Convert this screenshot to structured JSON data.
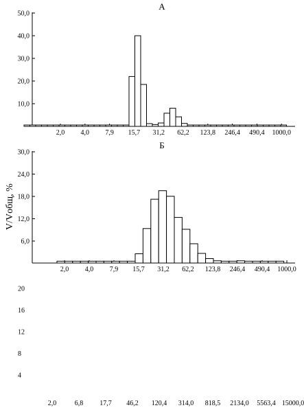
{
  "chart_data": [
    {
      "type": "bar",
      "title": "А",
      "ylim": [
        0,
        50
      ],
      "y_ticks": [
        "50,0",
        "40,0",
        "30,0",
        "20,0",
        "10,0"
      ],
      "x_ticks": [
        "2,0",
        "4,0",
        "7,9",
        "15,7",
        "31,2",
        "62,2",
        "123,8",
        "246,4",
        "490,4",
        "1000,0"
      ],
      "values": [
        0.6,
        0.6,
        0.6,
        0.6,
        0.6,
        0.6,
        0.6,
        0.6,
        0.6,
        0.6,
        0.6,
        0.6,
        0.6,
        0.6,
        0.6,
        0.6,
        0.6,
        0.6,
        22,
        40,
        18.5,
        1.2,
        0.8,
        1.5,
        5.8,
        8,
        4.2,
        1.3,
        0.6,
        0.6,
        0.6,
        0.6,
        0.6,
        0.6,
        0.6,
        0.6,
        0.6,
        0.6,
        0.6,
        0.6,
        0.6,
        0.6,
        0.6,
        0.6,
        0.6
      ],
      "grid": false
    },
    {
      "type": "bar",
      "title": "Б",
      "ylabel": "V/Vобщ, %",
      "ylim": [
        0,
        30
      ],
      "y_ticks": [
        "30,0",
        "24,0",
        "18,0",
        "12,0",
        "6,0"
      ],
      "x_ticks": [
        "2,0",
        "4,0",
        "7,9",
        "15,7",
        "31,2",
        "62,2",
        "123,8",
        "246,4",
        "490,4",
        "1000,0"
      ],
      "values": [
        0.5,
        0.5,
        0.5,
        0.5,
        0.5,
        0.5,
        0.5,
        0.5,
        0.5,
        0.5,
        2.5,
        9.3,
        17.2,
        19.5,
        18,
        12.3,
        9.1,
        5.2,
        2.6,
        1.2,
        0.6,
        0.5,
        0.5,
        0.6,
        0.5,
        0.5,
        0.5,
        0.5,
        0.5
      ],
      "grid": false
    },
    {
      "type": "bar",
      "y_ticks": [
        "20",
        "16",
        "12",
        "8",
        "4"
      ],
      "x_ticks": [
        "2,0",
        "6,8",
        "17,7",
        "46,2",
        "120,4",
        "314,0",
        "818,5",
        "2134,0",
        "5563,4",
        "15000,0"
      ],
      "values": []
    }
  ]
}
